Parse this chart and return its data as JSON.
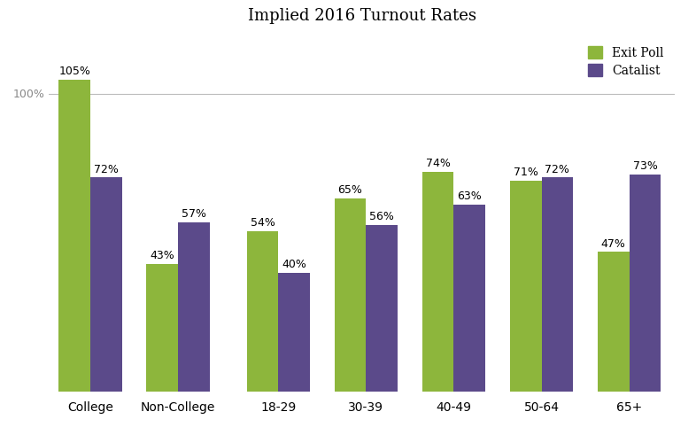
{
  "title": "Implied 2016 Turnout Rates",
  "categories": [
    "College",
    "Non-College",
    "18-29",
    "30-39",
    "40-49",
    "50-64",
    "65+"
  ],
  "exit_poll": [
    105,
    43,
    54,
    65,
    74,
    71,
    47
  ],
  "catalist": [
    72,
    57,
    40,
    56,
    63,
    72,
    73
  ],
  "exit_poll_color": "#8db63c",
  "catalist_color": "#5b4a8a",
  "bar_width": 0.38,
  "background_color": "#ffffff",
  "title_fontsize": 13,
  "label_fontsize": 9,
  "tick_fontsize": 10,
  "legend_labels": [
    "Exit Poll",
    "Catalist"
  ],
  "hline_y": 100,
  "hline_label": "100%",
  "ylim": [
    0,
    120
  ],
  "centers": [
    0,
    1.05,
    2.25,
    3.3,
    4.35,
    5.4,
    6.45
  ],
  "xlim_left": -0.5,
  "xlim_right": 7.0
}
